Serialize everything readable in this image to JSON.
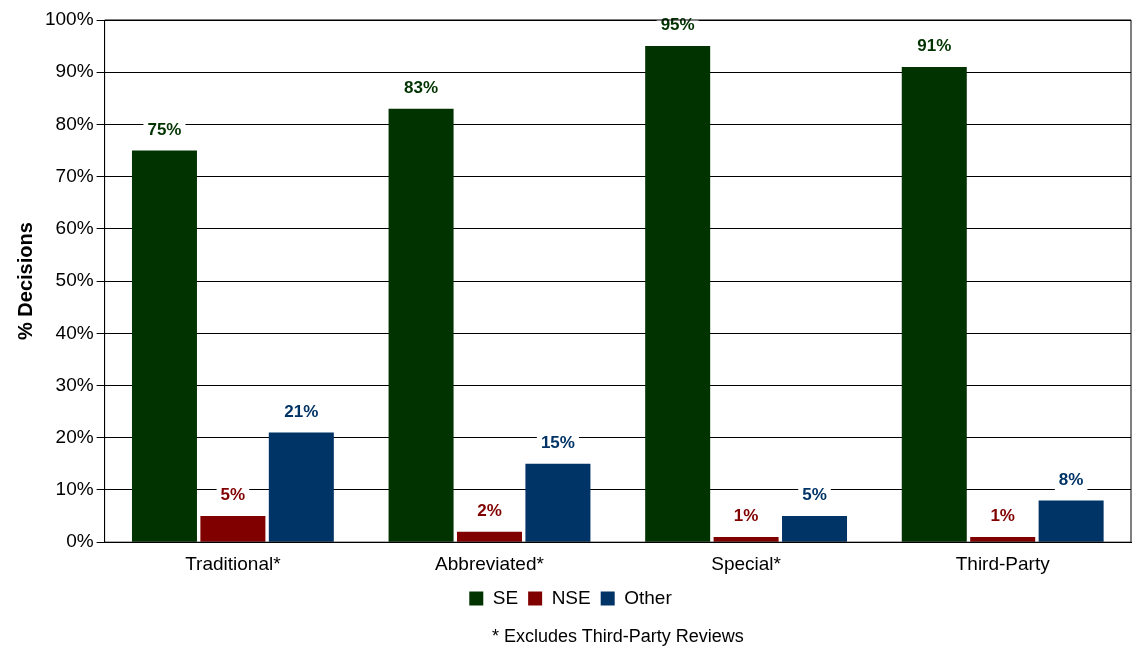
{
  "chart_data": {
    "type": "bar",
    "ylabel": "% Decisions",
    "categories": [
      "Traditional*",
      "Abbreviated*",
      "Special*",
      "Third-Party"
    ],
    "series": [
      {
        "name": "SE",
        "color": "#003300",
        "values": [
          75,
          83,
          95,
          91
        ],
        "value_labels": [
          "75%",
          "83%",
          "95%",
          "91%"
        ]
      },
      {
        "name": "NSE",
        "color": "#800000",
        "values": [
          5,
          2,
          1,
          1
        ],
        "value_labels": [
          "5%",
          "2%",
          "1%",
          "1%"
        ]
      },
      {
        "name": "Other",
        "color": "#003366",
        "values": [
          21,
          15,
          5,
          8
        ],
        "value_labels": [
          "21%",
          "15%",
          "5%",
          "8%"
        ]
      }
    ],
    "ylim": [
      0,
      100
    ],
    "yticks": [
      {
        "value": 0,
        "label": "0%"
      },
      {
        "value": 10,
        "label": "10%"
      },
      {
        "value": 20,
        "label": "20%"
      },
      {
        "value": 30,
        "label": "30%"
      },
      {
        "value": 40,
        "label": "40%"
      },
      {
        "value": 50,
        "label": "50%"
      },
      {
        "value": 60,
        "label": "60%"
      },
      {
        "value": 70,
        "label": "70%"
      },
      {
        "value": 80,
        "label": "80%"
      },
      {
        "value": 90,
        "label": "90%"
      },
      {
        "value": 100,
        "label": "100%"
      }
    ],
    "grid": "y",
    "legend": "bottom",
    "annotations": [
      "* Excludes Third-Party Reviews"
    ]
  }
}
